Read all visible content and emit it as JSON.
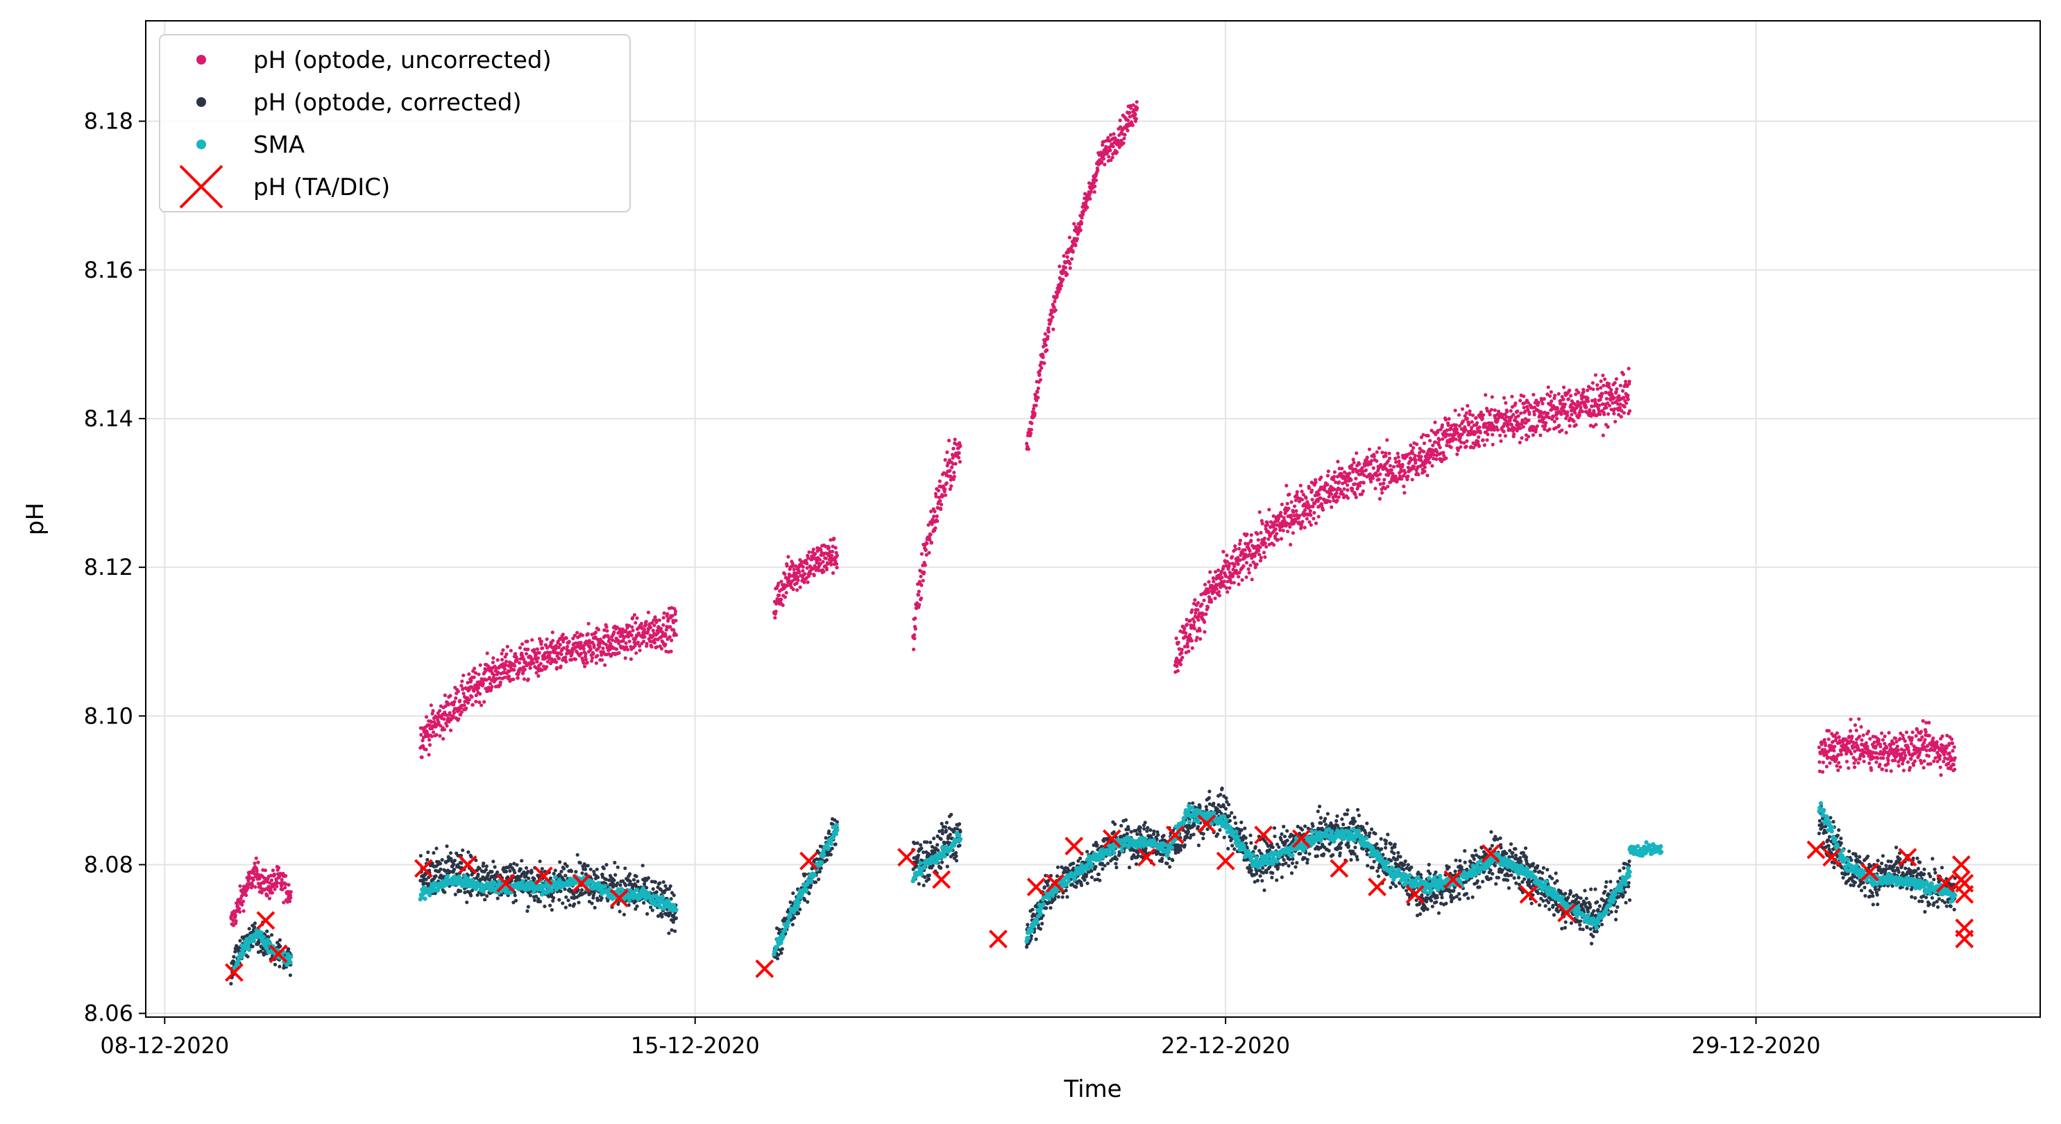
{
  "chart_data": {
    "type": "scatter",
    "title": "",
    "xlabel": "Time",
    "ylabel": "pH",
    "xlim": [
      "2020-12-07T18:00",
      "2021-01-01T18:00"
    ],
    "ylim": [
      8.0595,
      8.1935
    ],
    "x_ticks": [
      {
        "date": "2020-12-08",
        "label": "08-12-2020"
      },
      {
        "date": "2020-12-15",
        "label": "15-12-2020"
      },
      {
        "date": "2020-12-22",
        "label": "22-12-2020"
      },
      {
        "date": "2020-12-29",
        "label": "29-12-2020"
      }
    ],
    "y_ticks": [
      {
        "value": 8.06,
        "label": "8.06"
      },
      {
        "value": 8.08,
        "label": "8.08"
      },
      {
        "value": 8.1,
        "label": "8.10"
      },
      {
        "value": 8.12,
        "label": "8.12"
      },
      {
        "value": 8.14,
        "label": "8.14"
      },
      {
        "value": 8.16,
        "label": "8.16"
      },
      {
        "value": 8.18,
        "label": "8.18"
      }
    ],
    "grid": true,
    "legend_position": "top-left",
    "series": [
      {
        "name": "pH (optode, uncorrected)",
        "marker": "dot",
        "color": "#d81b6a",
        "segments": [
          {
            "start": "2020-12-08T21:00",
            "end": "2020-12-09T16:00",
            "values": [
              8.072,
              8.076,
              8.079,
              8.077,
              8.078,
              8.076
            ],
            "noise": 0.0018
          },
          {
            "start": "2020-12-11T09:00",
            "end": "2020-12-14T18:00",
            "values": [
              8.097,
              8.101,
              8.105,
              8.107,
              8.108,
              8.109,
              8.11,
              8.111,
              8.112
            ],
            "noise": 0.0025
          },
          {
            "start": "2020-12-16T01:00",
            "end": "2020-12-16T21:00",
            "values": [
              8.115,
              8.119,
              8.12,
              8.121,
              8.122
            ],
            "noise": 0.0025
          },
          {
            "start": "2020-12-17T21:00",
            "end": "2020-12-18T12:00",
            "values": [
              8.11,
              8.122,
              8.128,
              8.133,
              8.136
            ],
            "noise": 0.003
          },
          {
            "start": "2020-12-19T09:00",
            "end": "2020-12-20T20:00",
            "values": [
              8.136,
              8.15,
              8.16,
              8.167,
              8.175,
              8.178,
              8.182
            ],
            "noise": 0.0018
          },
          {
            "start": "2020-12-21T08:00",
            "end": "2020-12-27T08:00",
            "values": [
              8.108,
              8.117,
              8.122,
              8.127,
              8.13,
              8.133,
              8.133,
              8.137,
              8.139,
              8.14,
              8.141,
              8.142,
              8.143
            ],
            "noise": 0.003
          },
          {
            "start": "2020-12-29T20:00",
            "end": "2020-12-31T15:00",
            "values": [
              8.095,
              8.096,
              8.095,
              8.096,
              8.095
            ],
            "noise": 0.0025
          }
        ]
      },
      {
        "name": "pH (optode, corrected)",
        "marker": "dot",
        "color": "#2b3547",
        "segments": [
          {
            "start": "2020-12-08T21:00",
            "end": "2020-12-09T16:00",
            "values": [
              8.066,
              8.069,
              8.071,
              8.069,
              8.068,
              8.067
            ],
            "noise": 0.0022
          },
          {
            "start": "2020-12-11T09:00",
            "end": "2020-12-14T18:00",
            "values": [
              8.079,
              8.079,
              8.078,
              8.078,
              8.077,
              8.078,
              8.077,
              8.076,
              8.074
            ],
            "noise": 0.0028
          },
          {
            "start": "2020-12-16T01:00",
            "end": "2020-12-16T21:00",
            "values": [
              8.068,
              8.073,
              8.077,
              8.081,
              8.085
            ],
            "noise": 0.002
          },
          {
            "start": "2020-12-17T21:00",
            "end": "2020-12-18T12:00",
            "values": [
              8.081,
              8.08,
              8.081,
              8.084,
              8.083
            ],
            "noise": 0.003
          },
          {
            "start": "2020-12-19T09:00",
            "end": "2020-12-21T12:00",
            "values": [
              8.07,
              8.076,
              8.078,
              8.08,
              8.082,
              8.083,
              8.083,
              8.082,
              8.085
            ],
            "noise": 0.0025
          },
          {
            "start": "2020-12-21T12:00",
            "end": "2020-12-27T08:00",
            "values": [
              8.086,
              8.087,
              8.08,
              8.082,
              8.084,
              8.084,
              8.08,
              8.076,
              8.078,
              8.081,
              8.079,
              8.075,
              8.073,
              8.078
            ],
            "noise": 0.003
          },
          {
            "start": "2020-12-29T20:00",
            "end": "2020-12-31T15:00",
            "values": [
              8.086,
              8.08,
              8.078,
              8.079,
              8.077,
              8.076
            ],
            "noise": 0.0028
          }
        ]
      },
      {
        "name": "SMA",
        "marker": "dot",
        "color": "#17b5bf",
        "segments": [
          {
            "start": "2020-12-08T22:00",
            "end": "2020-12-09T16:00",
            "values": [
              8.066,
              8.069,
              8.071,
              8.069,
              8.068,
              8.067
            ]
          },
          {
            "start": "2020-12-11T09:00",
            "end": "2020-12-14T18:00",
            "values": [
              8.076,
              8.078,
              8.077,
              8.077,
              8.077,
              8.078,
              8.076,
              8.076,
              8.074
            ]
          },
          {
            "start": "2020-12-16T01:00",
            "end": "2020-12-16T21:00",
            "values": [
              8.068,
              8.073,
              8.077,
              8.081,
              8.085
            ]
          },
          {
            "start": "2020-12-17T21:00",
            "end": "2020-12-18T12:00",
            "values": [
              8.078,
              8.08,
              8.081,
              8.082,
              8.084
            ]
          },
          {
            "start": "2020-12-19T09:00",
            "end": "2020-12-21T12:00",
            "values": [
              8.07,
              8.076,
              8.078,
              8.08,
              8.082,
              8.083,
              8.083,
              8.082,
              8.087
            ]
          },
          {
            "start": "2020-12-21T12:00",
            "end": "2020-12-27T08:00",
            "values": [
              8.087,
              8.086,
              8.08,
              8.082,
              8.084,
              8.084,
              8.079,
              8.077,
              8.078,
              8.081,
              8.079,
              8.075,
              8.072,
              8.079
            ]
          },
          {
            "start": "2020-12-27T08:00",
            "end": "2020-12-27T18:00",
            "values": [
              8.082,
              8.082
            ]
          },
          {
            "start": "2020-12-29T20:00",
            "end": "2020-12-31T15:00",
            "values": [
              8.088,
              8.08,
              8.078,
              8.078,
              8.077,
              8.076
            ]
          }
        ]
      },
      {
        "name": "pH (TA/DIC)",
        "marker": "x",
        "color": "#ff0000",
        "points": [
          [
            "2020-12-08T22:00",
            8.0655
          ],
          [
            "2020-12-09T08:00",
            8.0725
          ],
          [
            "2020-12-09T12:00",
            8.068
          ],
          [
            "2020-12-11T10:00",
            8.0795
          ],
          [
            "2020-12-12T00:00",
            8.08
          ],
          [
            "2020-12-12T12:00",
            8.0775
          ],
          [
            "2020-12-13T00:00",
            8.0785
          ],
          [
            "2020-12-13T12:00",
            8.0775
          ],
          [
            "2020-12-14T00:00",
            8.0755
          ],
          [
            "2020-12-15T22:00",
            8.066
          ],
          [
            "2020-12-16T12:00",
            8.0805
          ],
          [
            "2020-12-17T19:00",
            8.081
          ],
          [
            "2020-12-18T06:00",
            8.078
          ],
          [
            "2020-12-19T00:00",
            8.07
          ],
          [
            "2020-12-19T12:00",
            8.077
          ],
          [
            "2020-12-19T18:00",
            8.0775
          ],
          [
            "2020-12-20T00:00",
            8.0825
          ],
          [
            "2020-12-20T12:00",
            8.0835
          ],
          [
            "2020-12-20T23:00",
            8.081
          ],
          [
            "2020-12-21T08:00",
            8.084
          ],
          [
            "2020-12-21T18:00",
            8.0855
          ],
          [
            "2020-12-22T00:00",
            8.0805
          ],
          [
            "2020-12-22T12:00",
            8.084
          ],
          [
            "2020-12-23T00:00",
            8.0835
          ],
          [
            "2020-12-23T12:00",
            8.0795
          ],
          [
            "2020-12-24T00:00",
            8.077
          ],
          [
            "2020-12-24T12:00",
            8.076
          ],
          [
            "2020-12-25T00:00",
            8.078
          ],
          [
            "2020-12-25T12:00",
            8.0815
          ],
          [
            "2020-12-26T00:00",
            8.076
          ],
          [
            "2020-12-26T12:00",
            8.0735
          ],
          [
            "2020-12-29T19:00",
            8.082
          ],
          [
            "2020-12-30T00:00",
            8.081
          ],
          [
            "2020-12-30T12:00",
            8.079
          ],
          [
            "2020-12-31T00:00",
            8.081
          ],
          [
            "2020-12-31T12:00",
            8.0775
          ],
          [
            "2020-12-31T17:00",
            8.08
          ],
          [
            "2020-12-31T18:00",
            8.0775
          ],
          [
            "2020-12-31T18:00",
            8.076
          ],
          [
            "2020-12-31T18:00",
            8.0715
          ],
          [
            "2020-12-31T18:00",
            8.07
          ],
          [
            "2020-12-31T17:00",
            8.078
          ]
        ]
      }
    ]
  }
}
